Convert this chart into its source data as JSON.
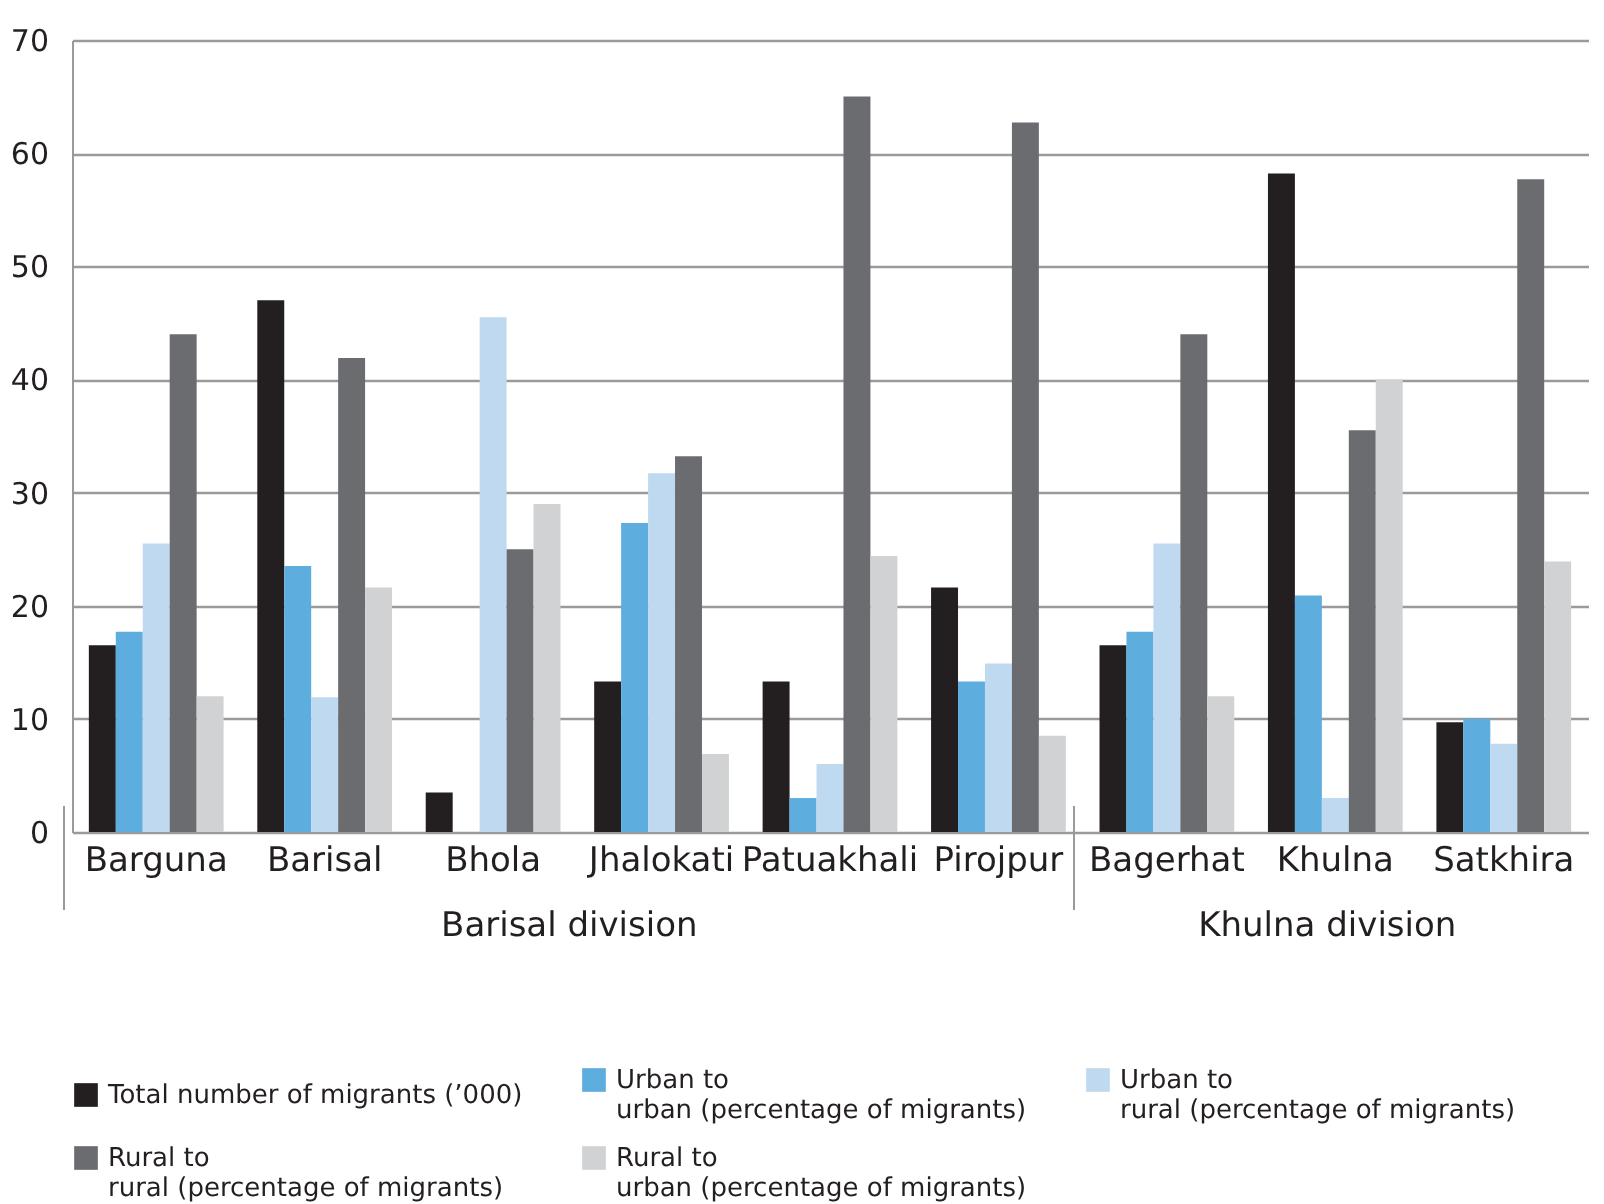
{
  "chart_data": {
    "type": "bar",
    "categories": [
      "Barguna",
      "Barisal",
      "Bhola",
      "Jhalokati",
      "Patuakhali",
      "Pirojpur",
      "Bagerhat",
      "Khulna",
      "Satkhira"
    ],
    "series": [
      {
        "name": "Total number of migrants (’000)",
        "color": "#231f20",
        "values": [
          16.5,
          47,
          3.5,
          13.3,
          13.3,
          21.6,
          16.5,
          58.2,
          9.7
        ]
      },
      {
        "name": "Urban to urban (percentage of migrants)",
        "color": "#5eaddf",
        "values": [
          17.7,
          23.5,
          0,
          27.3,
          3,
          13.3,
          17.7,
          20.9,
          10
        ]
      },
      {
        "name": "Urban to rural (percentage of migrants)",
        "color": "#bfd9f1",
        "values": [
          25.5,
          11.9,
          45.5,
          31.7,
          6,
          14.9,
          25.5,
          3,
          7.8
        ]
      },
      {
        "name": "Rural to rural (percentage of migrants)",
        "color": "#6b6c70",
        "values": [
          44,
          41.9,
          25,
          33.2,
          65,
          62.7,
          44,
          35.5,
          57.7
        ]
      },
      {
        "name": "Rural to urban (percentage of migrants)",
        "color": "#d1d2d4",
        "values": [
          12,
          21.6,
          29,
          6.9,
          24.4,
          8.5,
          12,
          40,
          23.9
        ]
      }
    ],
    "ylim": [
      0,
      70
    ],
    "yticks": [
      0,
      10,
      20,
      30,
      40,
      50,
      60,
      70
    ],
    "grid": "y",
    "legend": "bottom",
    "annotations": [
      "Barisal division",
      "Khulna division"
    ]
  }
}
